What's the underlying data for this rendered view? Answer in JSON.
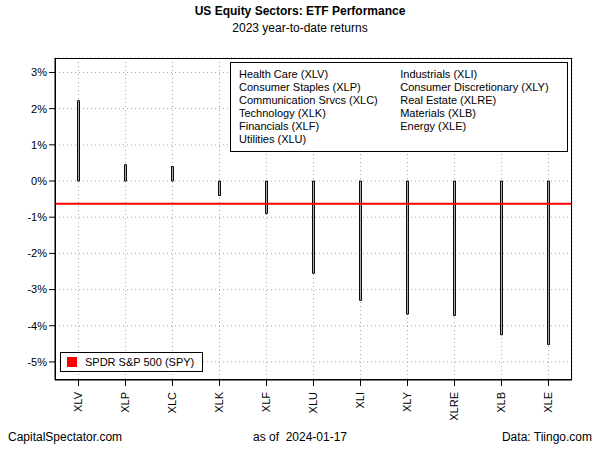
{
  "chart_data": {
    "type": "bar",
    "title": "US Equity Sectors: ETF Performance",
    "subtitle": "2023 year-to-date returns",
    "categories": [
      "XLV",
      "XLP",
      "XLC",
      "XLK",
      "XLF",
      "XLU",
      "XLI",
      "XLY",
      "XLRE",
      "XLB",
      "XLE"
    ],
    "values": [
      2.22,
      0.45,
      0.4,
      -0.4,
      -0.9,
      -2.55,
      -3.3,
      -3.68,
      -3.72,
      -4.25,
      -4.52
    ],
    "color": "#bebebe",
    "ylim": [
      -5.5,
      3.4
    ],
    "yticks": [
      {
        "value": -5,
        "label": "-5%"
      },
      {
        "value": -4,
        "label": "-4%"
      },
      {
        "value": -3,
        "label": "-3%"
      },
      {
        "value": -2,
        "label": "-2%"
      },
      {
        "value": -1,
        "label": "-1%"
      },
      {
        "value": 0,
        "label": "0%"
      },
      {
        "value": 1,
        "label": "1%"
      },
      {
        "value": 2,
        "label": "2%"
      },
      {
        "value": 3,
        "label": "3%"
      }
    ],
    "grid": true,
    "sector_key": [
      "Health Care (XLV)",
      "Consumer Staples (XLP)",
      "Communication Srvcs (XLC)",
      "Technology (XLK)",
      "Financials (XLF)",
      "Utilities (XLU)",
      "Industrials (XLI)",
      "Consumer Discretionary (XLY)",
      "Real Estate (XLRE)",
      "Materials (XLB)",
      "Energy (XLE)"
    ],
    "reference_line": {
      "name": "SPDR S&P 500 (SPY)",
      "value": -0.63,
      "color": "#ff0000"
    },
    "legend": "lower left",
    "annotations": {
      "left": "CapitalSpectator.com",
      "center": "as of  2024-01-17",
      "right": "Data: Tiingo.com"
    }
  }
}
